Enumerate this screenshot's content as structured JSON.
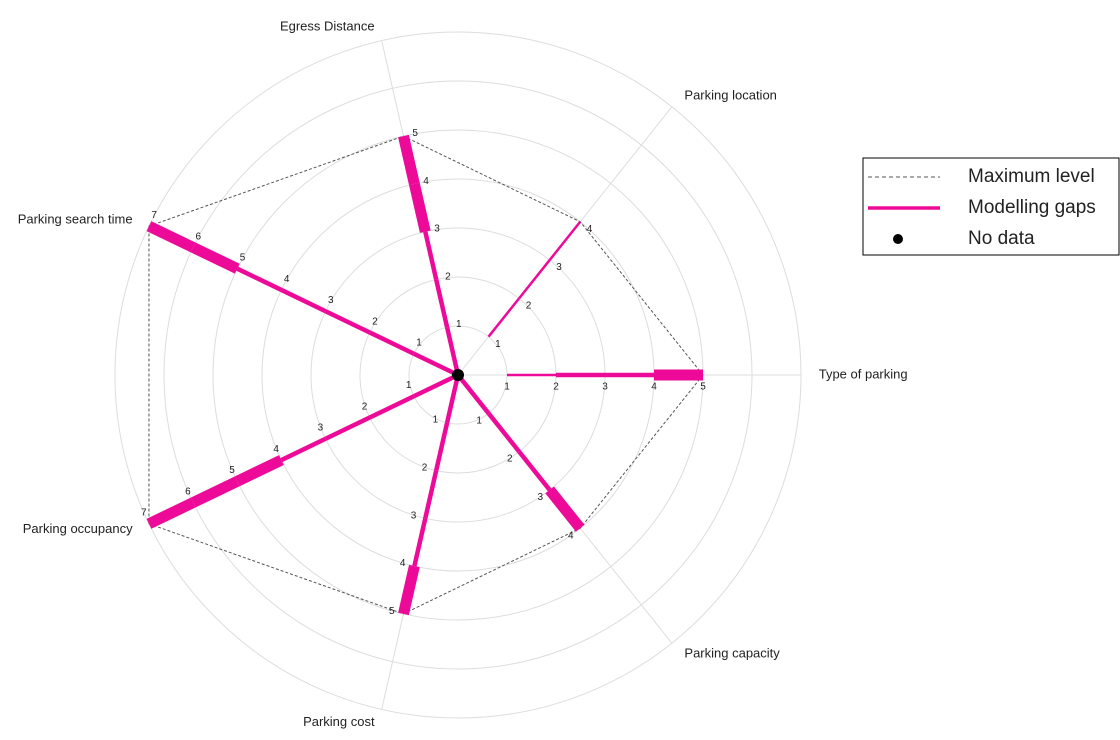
{
  "chart_data": {
    "type": "radar",
    "rlim": [
      0,
      7
    ],
    "rticks": [
      1,
      2,
      3,
      4,
      5,
      6,
      7
    ],
    "axes": [
      {
        "name": "Type of parking",
        "max_level": 5,
        "gaps": [
          0,
          1,
          2,
          2,
          3
        ]
      },
      {
        "name": "Parking location",
        "max_level": 4,
        "gaps": [
          0,
          1,
          1,
          1
        ]
      },
      {
        "name": "Egress Distance",
        "max_level": 5,
        "gaps": [
          2,
          2,
          2,
          3,
          3
        ]
      },
      {
        "name": "Parking search time",
        "max_level": 7,
        "gaps": [
          2,
          2,
          2,
          2,
          2,
          3,
          3
        ]
      },
      {
        "name": "Parking occupancy",
        "max_level": 7,
        "gaps": [
          2,
          2,
          2,
          2,
          3,
          3,
          3
        ]
      },
      {
        "name": "Parking cost",
        "max_level": 5,
        "gaps": [
          2,
          2,
          2,
          2,
          3
        ]
      },
      {
        "name": "Parking capacity",
        "max_level": 4,
        "gaps": [
          2,
          2,
          2,
          3
        ]
      }
    ],
    "legend": [
      {
        "name": "Maximum level",
        "color": "#555555"
      },
      {
        "name": "Modelling gaps",
        "color": "#ee0a99"
      },
      {
        "name": "No data",
        "color": "#000000"
      }
    ]
  }
}
